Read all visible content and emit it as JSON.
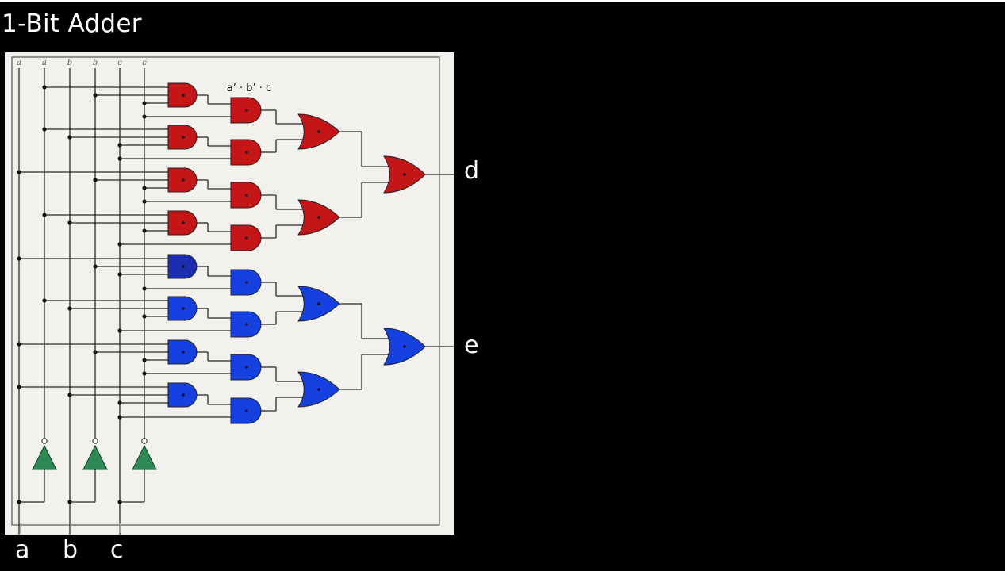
{
  "title": "1-Bit Adder",
  "annotation": "a’ · b’ · c",
  "top_labels": [
    "a",
    "a̅",
    "b",
    "b̅",
    "c",
    "c̅"
  ],
  "inputs": [
    "a",
    "b",
    "c"
  ],
  "outputs": [
    "d",
    "e"
  ],
  "colors": {
    "background": "#000000",
    "panel": "#f2f1ee",
    "sum_gates": "#c41616",
    "carry_gates_first": "#1a2cb0",
    "carry_gates": "#1540e0",
    "inverters": "#2e8a55",
    "wire": "#2a2a2a"
  },
  "gates": {
    "and_first_stage": 8,
    "and_second_stage": 8,
    "or_third_stage": 4,
    "or_output_stage": 2,
    "inverters": 3
  }
}
